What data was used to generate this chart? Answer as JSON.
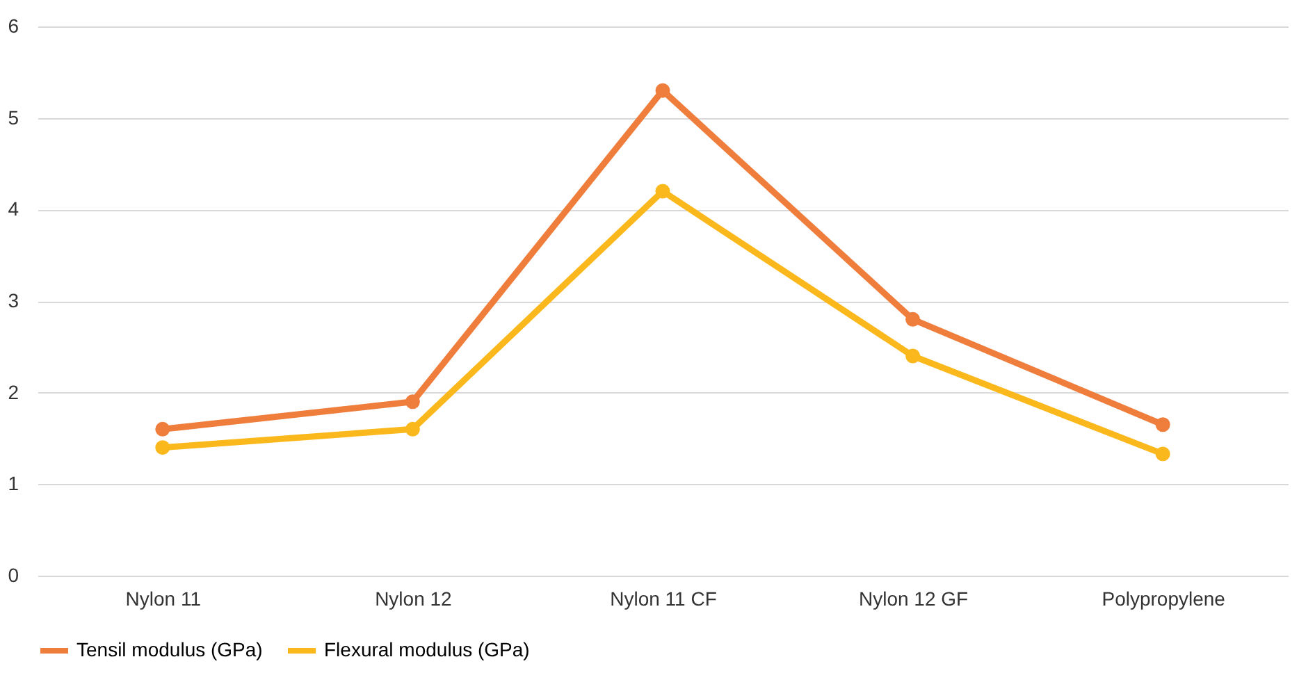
{
  "chart_data": {
    "type": "line",
    "categories": [
      "Nylon 11",
      "Nylon 12",
      "Nylon 11 CF",
      "Nylon 12 GF",
      "Polypropylene"
    ],
    "series": [
      {
        "name": "Tensil modulus (GPa)",
        "color": "#ef7d3c",
        "values": [
          1.6,
          1.9,
          5.3,
          2.8,
          1.65
        ]
      },
      {
        "name": "Flexural modulus (GPa)",
        "color": "#fbb81c",
        "values": [
          1.4,
          1.6,
          4.2,
          2.4,
          1.33
        ]
      }
    ],
    "ylim": [
      0,
      6
    ],
    "yticks": [
      0,
      1,
      2,
      3,
      4,
      5,
      6
    ],
    "grid": "y",
    "legend": "bottom",
    "marker": "circle",
    "line_style": "solid"
  }
}
